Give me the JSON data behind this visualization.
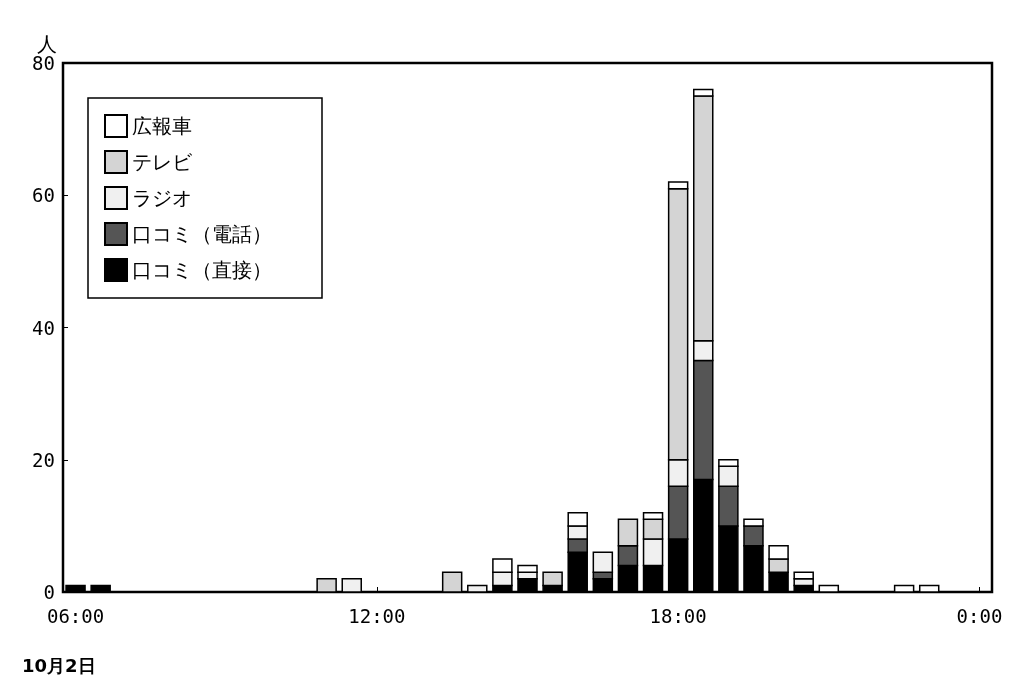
{
  "chart_data": {
    "type": "bar",
    "stacked": true,
    "ylabel": "人",
    "annotations": [
      "10月2日"
    ],
    "x": [
      6,
      6.5,
      11,
      11.5,
      13.5,
      14,
      14.5,
      15,
      15.5,
      16,
      16.5,
      17,
      17.5,
      18,
      18.5,
      19,
      19.5,
      20,
      20.5,
      21,
      22.5,
      23
    ],
    "xlim": [
      5.75,
      24.25
    ],
    "xticks": [
      {
        "value": 6,
        "label": "06:00"
      },
      {
        "value": 12,
        "label": "12:00"
      },
      {
        "value": 18,
        "label": "18:00"
      },
      {
        "value": 24,
        "label": "0:00"
      }
    ],
    "ylim": [
      0,
      80
    ],
    "yticks": [
      0,
      20,
      40,
      60,
      80
    ],
    "grid": false,
    "legend": "top left",
    "series": [
      {
        "name": "口コミ（直接）",
        "color": "#000000",
        "values": [
          1,
          1,
          null,
          null,
          null,
          null,
          1,
          2,
          1,
          6,
          2,
          4,
          4,
          8,
          17,
          10,
          7,
          3,
          1,
          null,
          null,
          null
        ]
      },
      {
        "name": "口コミ（電話）",
        "color": "#555555",
        "values": [
          null,
          null,
          null,
          null,
          null,
          null,
          null,
          null,
          null,
          2,
          1,
          3,
          null,
          8,
          18,
          6,
          3,
          null,
          null,
          null,
          null,
          null
        ]
      },
      {
        "name": "ラジオ",
        "color": "#f0f0f0",
        "values": [
          null,
          null,
          null,
          2,
          null,
          1,
          2,
          1,
          null,
          2,
          3,
          null,
          4,
          4,
          3,
          3,
          null,
          null,
          1,
          null,
          null,
          null
        ]
      },
      {
        "name": "テレビ",
        "color": "#d4d4d4",
        "values": [
          null,
          null,
          2,
          null,
          3,
          null,
          null,
          null,
          2,
          null,
          null,
          4,
          3,
          41,
          37,
          null,
          null,
          2,
          null,
          null,
          null,
          null
        ]
      },
      {
        "name": "広報車",
        "color": "#ffffff",
        "values": [
          null,
          null,
          null,
          null,
          null,
          null,
          2,
          1,
          null,
          2,
          null,
          null,
          1,
          1,
          1,
          1,
          1,
          2,
          1,
          1,
          1,
          1
        ]
      }
    ]
  }
}
